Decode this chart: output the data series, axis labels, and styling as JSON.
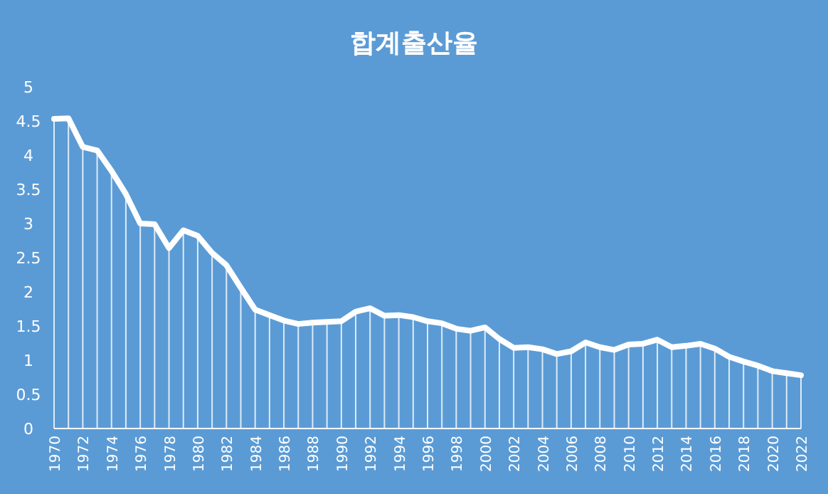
{
  "chart_data": {
    "type": "line",
    "title": "합계출산율",
    "x": [
      1970,
      1971,
      1972,
      1973,
      1974,
      1975,
      1976,
      1977,
      1978,
      1979,
      1980,
      1981,
      1982,
      1983,
      1984,
      1985,
      1986,
      1987,
      1988,
      1989,
      1990,
      1991,
      1992,
      1993,
      1994,
      1995,
      1996,
      1997,
      1998,
      1999,
      2000,
      2001,
      2002,
      2003,
      2004,
      2005,
      2006,
      2007,
      2008,
      2009,
      2010,
      2011,
      2012,
      2013,
      2014,
      2015,
      2016,
      2017,
      2018,
      2019,
      2020,
      2021,
      2022
    ],
    "series": [
      {
        "type": "bar",
        "color": "#ffffff",
        "values": [
          4.53,
          4.54,
          4.12,
          4.07,
          3.77,
          3.43,
          3.0,
          2.99,
          2.64,
          2.9,
          2.82,
          2.57,
          2.39,
          2.06,
          1.74,
          1.66,
          1.58,
          1.53,
          1.55,
          1.56,
          1.57,
          1.71,
          1.76,
          1.65,
          1.66,
          1.63,
          1.57,
          1.54,
          1.46,
          1.43,
          1.48,
          1.31,
          1.18,
          1.19,
          1.16,
          1.09,
          1.13,
          1.26,
          1.19,
          1.15,
          1.23,
          1.24,
          1.3,
          1.19,
          1.21,
          1.24,
          1.17,
          1.05,
          0.98,
          0.92,
          0.84,
          0.81,
          0.78
        ]
      },
      {
        "color": "#ffffff",
        "values": [
          4.53,
          4.54,
          4.12,
          4.07,
          3.77,
          3.43,
          3.0,
          2.99,
          2.64,
          2.9,
          2.82,
          2.57,
          2.39,
          2.06,
          1.74,
          1.66,
          1.58,
          1.53,
          1.55,
          1.56,
          1.57,
          1.71,
          1.76,
          1.65,
          1.66,
          1.63,
          1.57,
          1.54,
          1.46,
          1.43,
          1.48,
          1.31,
          1.18,
          1.19,
          1.16,
          1.09,
          1.13,
          1.26,
          1.19,
          1.15,
          1.23,
          1.24,
          1.3,
          1.19,
          1.21,
          1.24,
          1.17,
          1.05,
          0.98,
          0.92,
          0.84,
          0.81,
          0.78
        ]
      }
    ],
    "xlim": [
      1970,
      2022
    ],
    "xticks": [
      1970,
      1972,
      1974,
      1976,
      1978,
      1980,
      1982,
      1984,
      1986,
      1988,
      1990,
      1992,
      1994,
      1996,
      1998,
      2000,
      2002,
      2004,
      2006,
      2008,
      2010,
      2012,
      2014,
      2016,
      2018,
      2020,
      2022
    ],
    "ylim": [
      0,
      5
    ],
    "yticks": [
      0,
      0.5,
      1,
      1.5,
      2,
      2.5,
      3,
      3.5,
      4,
      4.5,
      5
    ],
    "line_style": "solid",
    "marker": "none"
  }
}
